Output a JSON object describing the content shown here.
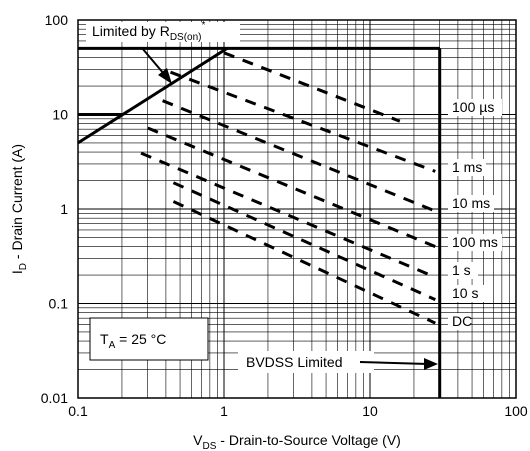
{
  "chart_data": {
    "type": "line",
    "xlabel": {
      "main": "V",
      "sub": "DS",
      "rest": " - Drain-to-Source Voltage (V)"
    },
    "ylabel": {
      "main": "I",
      "sub": "D",
      "rest": " - Drain Current (A)"
    },
    "x_scale": "log",
    "y_scale": "log",
    "xlim": [
      0.1,
      100
    ],
    "ylim": [
      0.01,
      100
    ],
    "grid": true,
    "x_ticks": [
      {
        "value": 0.1,
        "label": "0.1"
      },
      {
        "value": 1,
        "label": "1"
      },
      {
        "value": 10,
        "label": "10"
      },
      {
        "value": 100,
        "label": "100"
      }
    ],
    "y_ticks": [
      {
        "value": 100,
        "label": "100"
      },
      {
        "value": 10,
        "label": "10"
      },
      {
        "value": 1,
        "label": "1"
      },
      {
        "value": 0.1,
        "label": "0.1"
      },
      {
        "value": 0.01,
        "label": "0.01"
      }
    ],
    "series": [
      {
        "name": "100 µs",
        "style": "dashed",
        "points": [
          [
            1,
            45
          ],
          [
            16,
            8.5
          ]
        ]
      },
      {
        "name": "1 ms",
        "style": "dashed",
        "points": [
          [
            0.43,
            28
          ],
          [
            28,
            2.5
          ]
        ]
      },
      {
        "name": "10 ms",
        "style": "dashed",
        "points": [
          [
            0.38,
            14
          ],
          [
            28,
            0.95
          ]
        ]
      },
      {
        "name": "100 ms",
        "style": "dashed",
        "points": [
          [
            0.3,
            7.2
          ],
          [
            28,
            0.4
          ]
        ]
      },
      {
        "name": "1 s",
        "style": "dashed",
        "points": [
          [
            0.27,
            3.9
          ],
          [
            28,
            0.19
          ]
        ]
      },
      {
        "name": "10 s",
        "style": "dashed",
        "points": [
          [
            0.45,
            1.9
          ],
          [
            28,
            0.11
          ]
        ]
      },
      {
        "name": "DC",
        "style": "dashed",
        "points": [
          [
            0.45,
            1.2
          ],
          [
            28,
            0.062
          ]
        ]
      },
      {
        "name": "Limited by R_DS(on)",
        "style": "solid",
        "points": [
          [
            0.1,
            5
          ],
          [
            1.05,
            50
          ]
        ]
      },
      {
        "name": "Current limit 50 A",
        "style": "solid",
        "points": [
          [
            0.1,
            50
          ],
          [
            30,
            50
          ]
        ]
      },
      {
        "name": "Current limit 10 A",
        "style": "solid",
        "points": [
          [
            0.1,
            10
          ],
          [
            0.2,
            10
          ]
        ]
      },
      {
        "name": "BVDSS Limited",
        "style": "solid",
        "points": [
          [
            30,
            50
          ],
          [
            30,
            0.01
          ]
        ]
      }
    ],
    "annotations": {
      "rds_label": {
        "main": "Limited by R",
        "sub": "DS(on)",
        "sup": "*"
      },
      "ta_label": {
        "main": "T",
        "sub": "A",
        "rest": " = 25 °C"
      },
      "bvdss_label": "BVDSS Limited",
      "line_labels": [
        "100 µs",
        "1 ms",
        "10 ms",
        "100 ms",
        "1 s",
        "10 s",
        "DC"
      ]
    }
  }
}
